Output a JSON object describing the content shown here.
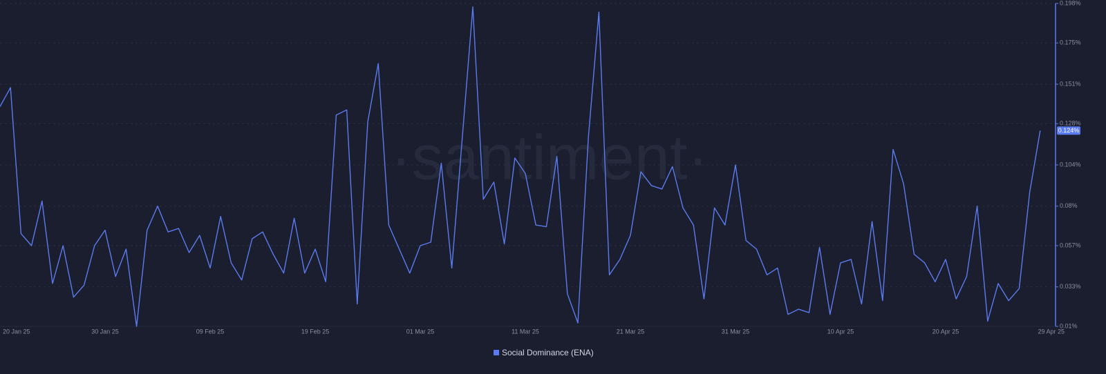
{
  "chart_data": {
    "type": "line",
    "watermark": "·santiment·",
    "categories": [
      "20 Jan 25",
      null,
      null,
      null,
      null,
      null,
      null,
      null,
      null,
      null,
      "30 Jan 25",
      null,
      null,
      null,
      null,
      null,
      null,
      null,
      null,
      null,
      "09 Feb 25",
      null,
      null,
      null,
      null,
      null,
      null,
      null,
      null,
      null,
      "19 Feb 25",
      null,
      null,
      null,
      null,
      null,
      null,
      null,
      null,
      null,
      "01 Mar 25",
      null,
      null,
      null,
      null,
      null,
      null,
      null,
      null,
      null,
      "11 Mar 25",
      null,
      null,
      null,
      null,
      null,
      null,
      null,
      null,
      null,
      "21 Mar 25",
      null,
      null,
      null,
      null,
      null,
      null,
      null,
      null,
      null,
      "31 Mar 25",
      null,
      null,
      null,
      null,
      null,
      null,
      null,
      null,
      null,
      "10 Apr 25",
      null,
      null,
      null,
      null,
      null,
      null,
      null,
      null,
      null,
      "20 Apr 25",
      null,
      null,
      null,
      null,
      null,
      null,
      null,
      null,
      "29 Apr 25"
    ],
    "series": [
      {
        "name": "Social Dominance (ENA)",
        "color": "#5b7cf0",
        "values": [
          0.138,
          0.149,
          0.064,
          0.057,
          0.083,
          0.035,
          0.057,
          0.027,
          0.034,
          0.057,
          0.066,
          0.039,
          0.055,
          0.01,
          0.066,
          0.08,
          0.065,
          0.067,
          0.053,
          0.063,
          0.044,
          0.074,
          0.047,
          0.037,
          0.061,
          0.065,
          0.052,
          0.041,
          0.073,
          0.041,
          0.055,
          0.036,
          0.133,
          0.136,
          0.023,
          0.129,
          0.163,
          0.069,
          0.055,
          0.041,
          0.057,
          0.059,
          0.105,
          0.044,
          0.12,
          0.196,
          0.084,
          0.094,
          0.058,
          0.108,
          0.099,
          0.069,
          0.068,
          0.109,
          0.029,
          0.012,
          0.12,
          0.193,
          0.04,
          0.049,
          0.063,
          0.1,
          0.092,
          0.09,
          0.103,
          0.079,
          0.069,
          0.026,
          0.079,
          0.069,
          0.104,
          0.06,
          0.055,
          0.04,
          0.044,
          0.017,
          0.02,
          0.018,
          0.056,
          0.017,
          0.047,
          0.049,
          0.023,
          0.071,
          0.025,
          0.113,
          0.093,
          0.052,
          0.047,
          0.036,
          0.049,
          0.026,
          0.039,
          0.08,
          0.013,
          0.035,
          0.025,
          0.032,
          0.088,
          0.124
        ],
        "value_labels": [
          null,
          null,
          null,
          null,
          null,
          null,
          null,
          null,
          null,
          null,
          null,
          null,
          null,
          null,
          null,
          null,
          null,
          null,
          null,
          null,
          null,
          null,
          null,
          null,
          null,
          null,
          null,
          null,
          null,
          null,
          null,
          null,
          null,
          null,
          null,
          null,
          null,
          null,
          null,
          null,
          null,
          null,
          null,
          null,
          null,
          null,
          null,
          null,
          null,
          null,
          null,
          null,
          null,
          null,
          null,
          null,
          null,
          null,
          null,
          null,
          null,
          null,
          null,
          null,
          null,
          null,
          null,
          null,
          null,
          null,
          null,
          null,
          null,
          null,
          null,
          null,
          null,
          null,
          null,
          null,
          null,
          null,
          null,
          null,
          null,
          null,
          null,
          null,
          null,
          null,
          null,
          null,
          null,
          null,
          null,
          null,
          null,
          null,
          null,
          "0.124%"
        ]
      }
    ],
    "ylim": [
      0.01,
      0.198
    ],
    "yticks": [
      {
        "value": 0.01,
        "label": "0.01%"
      },
      {
        "value": 0.033,
        "label": "0.033%"
      },
      {
        "value": 0.057,
        "label": "0.057%"
      },
      {
        "value": 0.08,
        "label": "0.08%"
      },
      {
        "value": 0.104,
        "label": "0.104%"
      },
      {
        "value": 0.128,
        "label": "0.128%"
      },
      {
        "value": 0.151,
        "label": "0.151%"
      },
      {
        "value": 0.175,
        "label": "0.175%"
      },
      {
        "value": 0.198,
        "label": "0.198%"
      }
    ],
    "grid": true
  }
}
